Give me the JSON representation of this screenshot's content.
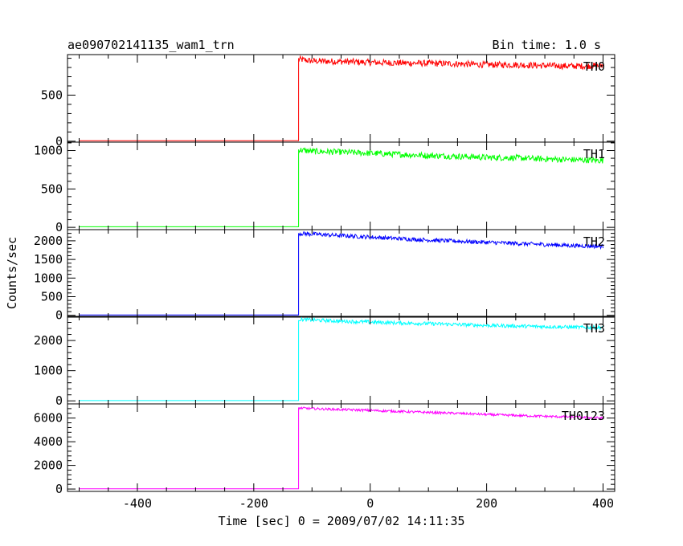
{
  "chart_data": {
    "type": "line",
    "title": "ae090702141135_wam1_trn",
    "subtitle": "Bin time: 1.0 s",
    "xlabel": "Time [sec] 0 = 2009/07/02 14:11:35",
    "ylabel": "Counts/sec",
    "xlim": [
      -520,
      420
    ],
    "x_ticks": [
      -400,
      -200,
      0,
      200,
      400
    ],
    "trigger_x": -123,
    "x_start": -500,
    "x_end": 400,
    "series": [
      {
        "name": "TH0",
        "color": "#ff0000",
        "ylim": [
          -10,
          940
        ],
        "y_ticks": [
          0,
          500
        ],
        "pre_level": 5,
        "x": [
          -123,
          -100,
          -50,
          0,
          50,
          100,
          150,
          200,
          250,
          300,
          350,
          400
        ],
        "y": [
          890,
          870,
          865,
          855,
          850,
          845,
          840,
          830,
          830,
          820,
          815,
          820
        ],
        "noise": 35
      },
      {
        "name": "TH1",
        "color": "#00ff00",
        "ylim": [
          -30,
          1110
        ],
        "y_ticks": [
          0,
          500,
          1000
        ],
        "pre_level": 8,
        "x": [
          -123,
          -100,
          -50,
          0,
          50,
          100,
          150,
          200,
          250,
          300,
          350,
          400
        ],
        "y": [
          1010,
          990,
          980,
          965,
          950,
          935,
          925,
          910,
          905,
          890,
          880,
          870
        ],
        "noise": 40
      },
      {
        "name": "TH2",
        "color": "#0000ff",
        "ylim": [
          -50,
          2300
        ],
        "y_ticks": [
          0,
          500,
          1000,
          1500,
          2000
        ],
        "pre_level": 10,
        "x": [
          -123,
          -100,
          -50,
          0,
          50,
          100,
          150,
          200,
          250,
          300,
          350,
          400
        ],
        "y": [
          2200,
          2180,
          2140,
          2100,
          2060,
          2020,
          1990,
          1960,
          1930,
          1900,
          1870,
          1850
        ],
        "noise": 55
      },
      {
        "name": "TH3",
        "color": "#00ffff",
        "ylim": [
          -100,
          2800
        ],
        "y_ticks": [
          0,
          1000,
          2000
        ],
        "pre_level": 10,
        "x": [
          -123,
          -100,
          -50,
          0,
          50,
          100,
          150,
          200,
          250,
          300,
          350,
          400
        ],
        "y": [
          2700,
          2680,
          2640,
          2610,
          2580,
          2560,
          2530,
          2500,
          2480,
          2460,
          2440,
          2430
        ],
        "noise": 60
      },
      {
        "name": "TH0123",
        "color": "#ff00ff",
        "ylim": [
          -200,
          7200
        ],
        "y_ticks": [
          0,
          2000,
          4000,
          6000
        ],
        "pre_level": 20,
        "x": [
          -123,
          -100,
          -50,
          0,
          50,
          100,
          150,
          200,
          250,
          300,
          350,
          400
        ],
        "y": [
          6850,
          6800,
          6720,
          6650,
          6560,
          6480,
          6400,
          6300,
          6220,
          6150,
          6080,
          6000
        ],
        "noise": 100
      }
    ]
  }
}
